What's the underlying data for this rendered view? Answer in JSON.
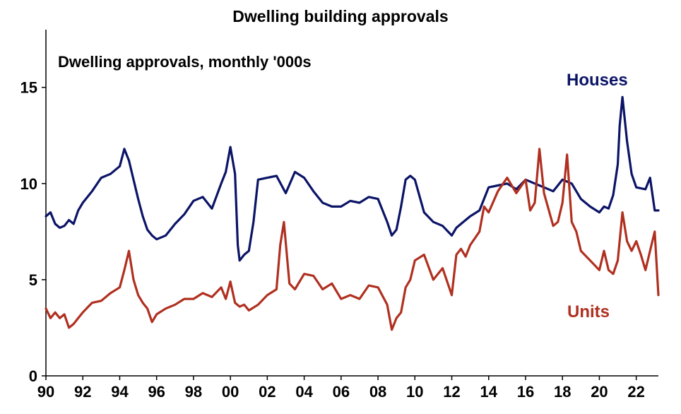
{
  "title": "Dwelling building approvals",
  "chart_data": {
    "type": "line",
    "title": "Dwelling building approvals",
    "subtitle": "Dwelling approvals, monthly '000s",
    "xlabel": "",
    "ylabel": "",
    "ylim": [
      0,
      18
    ],
    "xlim": [
      1990,
      2023.2
    ],
    "y_ticks": [
      0,
      5,
      10,
      15
    ],
    "x_tick_labels": [
      "90",
      "92",
      "94",
      "96",
      "98",
      "00",
      "02",
      "04",
      "06",
      "08",
      "10",
      "12",
      "14",
      "16",
      "18",
      "20",
      "22"
    ],
    "grid": false,
    "series_labels_on_chart": true,
    "series": [
      {
        "name": "Houses",
        "color": "#0b1466",
        "x": [
          1990.0,
          1990.25,
          1990.5,
          1990.75,
          1991.0,
          1991.25,
          1991.5,
          1991.75,
          1992.0,
          1992.5,
          1993.0,
          1993.5,
          1994.0,
          1994.25,
          1994.5,
          1994.75,
          1995.0,
          1995.25,
          1995.5,
          1995.75,
          1996.0,
          1996.5,
          1997.0,
          1997.5,
          1998.0,
          1998.5,
          1999.0,
          1999.5,
          1999.75,
          2000.0,
          2000.25,
          2000.4,
          2000.5,
          2000.75,
          2001.0,
          2001.25,
          2001.5,
          2002.0,
          2002.5,
          2003.0,
          2003.5,
          2004.0,
          2004.5,
          2005.0,
          2005.5,
          2006.0,
          2006.5,
          2007.0,
          2007.5,
          2008.0,
          2008.5,
          2008.75,
          2009.0,
          2009.25,
          2009.5,
          2009.75,
          2010.0,
          2010.5,
          2011.0,
          2011.5,
          2012.0,
          2012.25,
          2012.5,
          2013.0,
          2013.5,
          2013.75,
          2014.0,
          2014.5,
          2015.0,
          2015.5,
          2016.0,
          2016.5,
          2017.0,
          2017.5,
          2018.0,
          2018.5,
          2019.0,
          2019.5,
          2020.0,
          2020.25,
          2020.5,
          2020.75,
          2021.0,
          2021.1,
          2021.25,
          2021.5,
          2021.75,
          2022.0,
          2022.5,
          2022.75,
          2023.0,
          2023.2
        ],
        "values": [
          8.3,
          8.5,
          7.9,
          7.7,
          7.8,
          8.1,
          7.9,
          8.6,
          9.0,
          9.6,
          10.3,
          10.5,
          10.9,
          11.8,
          11.2,
          10.2,
          9.2,
          8.3,
          7.6,
          7.3,
          7.1,
          7.3,
          7.9,
          8.4,
          9.1,
          9.3,
          8.7,
          10.0,
          10.6,
          11.9,
          10.5,
          6.8,
          6.0,
          6.3,
          6.5,
          8.0,
          10.2,
          10.3,
          10.4,
          9.5,
          10.6,
          10.3,
          9.6,
          9.0,
          8.8,
          8.8,
          9.1,
          9.0,
          9.3,
          9.2,
          8.0,
          7.3,
          7.6,
          8.8,
          10.2,
          10.4,
          10.2,
          8.5,
          8.0,
          7.8,
          7.3,
          7.7,
          7.9,
          8.3,
          8.6,
          9.2,
          9.8,
          9.9,
          10.0,
          9.7,
          10.2,
          10.0,
          9.8,
          9.6,
          10.2,
          10.0,
          9.2,
          8.8,
          8.5,
          8.8,
          8.7,
          9.4,
          11.0,
          13.0,
          14.5,
          12.2,
          10.5,
          9.8,
          9.7,
          10.3,
          8.6,
          8.6
        ]
      },
      {
        "name": "Units",
        "color": "#b03020",
        "x": [
          1990.0,
          1990.25,
          1990.5,
          1990.75,
          1991.0,
          1991.25,
          1991.5,
          1991.75,
          1992.0,
          1992.5,
          1993.0,
          1993.5,
          1994.0,
          1994.25,
          1994.5,
          1994.75,
          1995.0,
          1995.25,
          1995.5,
          1995.75,
          1996.0,
          1996.5,
          1997.0,
          1997.5,
          1998.0,
          1998.5,
          1999.0,
          1999.5,
          1999.75,
          2000.0,
          2000.25,
          2000.5,
          2000.75,
          2001.0,
          2001.5,
          2002.0,
          2002.5,
          2002.7,
          2002.9,
          2003.2,
          2003.5,
          2004.0,
          2004.5,
          2005.0,
          2005.5,
          2006.0,
          2006.5,
          2007.0,
          2007.5,
          2008.0,
          2008.5,
          2008.75,
          2009.0,
          2009.25,
          2009.5,
          2009.75,
          2010.0,
          2010.5,
          2011.0,
          2011.5,
          2012.0,
          2012.25,
          2012.5,
          2012.75,
          2013.0,
          2013.5,
          2013.75,
          2014.0,
          2014.5,
          2015.0,
          2015.5,
          2016.0,
          2016.25,
          2016.5,
          2016.75,
          2017.0,
          2017.5,
          2017.75,
          2018.0,
          2018.25,
          2018.5,
          2018.75,
          2019.0,
          2019.5,
          2020.0,
          2020.25,
          2020.5,
          2020.75,
          2021.0,
          2021.25,
          2021.5,
          2021.75,
          2022.0,
          2022.25,
          2022.5,
          2022.75,
          2023.0,
          2023.2
        ],
        "values": [
          3.5,
          3.0,
          3.3,
          3.0,
          3.2,
          2.5,
          2.7,
          3.0,
          3.3,
          3.8,
          3.9,
          4.3,
          4.6,
          5.5,
          6.5,
          5.0,
          4.2,
          3.8,
          3.5,
          2.8,
          3.2,
          3.5,
          3.7,
          4.0,
          4.0,
          4.3,
          4.1,
          4.6,
          4.0,
          4.9,
          3.8,
          3.6,
          3.7,
          3.4,
          3.7,
          4.2,
          4.5,
          6.8,
          8.0,
          4.8,
          4.5,
          5.3,
          5.2,
          4.5,
          4.8,
          4.0,
          4.2,
          4.0,
          4.7,
          4.6,
          3.7,
          2.4,
          3.0,
          3.3,
          4.6,
          5.0,
          6.0,
          6.3,
          5.0,
          5.6,
          4.2,
          6.3,
          6.6,
          6.2,
          6.8,
          7.5,
          8.8,
          8.5,
          9.6,
          10.3,
          9.5,
          10.2,
          8.6,
          9.0,
          11.8,
          9.5,
          7.8,
          8.0,
          9.0,
          11.5,
          8.0,
          7.5,
          6.5,
          6.0,
          5.5,
          6.5,
          5.5,
          5.3,
          6.0,
          8.5,
          7.0,
          6.5,
          7.0,
          6.3,
          5.5,
          6.5,
          7.5,
          4.2
        ]
      }
    ]
  }
}
